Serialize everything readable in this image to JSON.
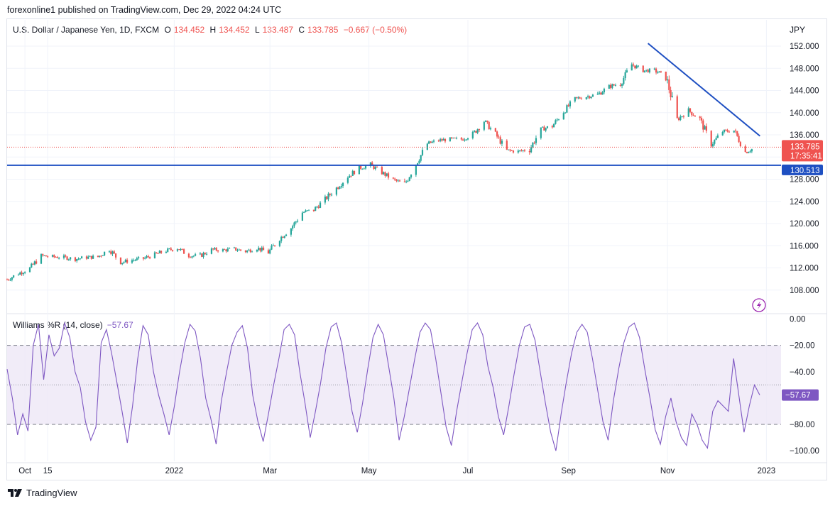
{
  "header": {
    "published": "forexonline1 published on TradingView.com, Dec 29, 2022 04:24 UTC"
  },
  "legend": {
    "symbol": "U.S. Dollar / Japanese Yen, 1D, FXCM",
    "o_label": "O",
    "o": "134.452",
    "h_label": "H",
    "h": "134.452",
    "l_label": "L",
    "l": "133.487",
    "c_label": "C",
    "c": "133.785",
    "change": "−0.667 (−0.50%)"
  },
  "price_unit": "JPY",
  "price_badge": {
    "value": "133.785",
    "countdown": "17:35:41"
  },
  "hline_badge": "130.513",
  "indicator": {
    "label": "Williams %R (14, close)",
    "value": "−57.67",
    "badge": "−57.67"
  },
  "footer": {
    "brand": "TradingView",
    "logo": "tradingview-logo-icon"
  },
  "colors": {
    "up": "#26a69a",
    "down": "#ef5350",
    "line": "#1e4fc2",
    "wr": "#7e57c2",
    "band": "#ede7f6"
  },
  "chart_data": [
    {
      "type": "candlestick",
      "title": "U.S. Dollar / Japanese Yen, 1D, FXCM",
      "ylabel": "JPY",
      "ylim": [
        104.0,
        157.0
      ],
      "y_ticks": [
        108,
        112,
        116,
        120,
        124,
        128,
        132,
        136,
        140,
        144,
        148,
        152
      ],
      "y_tick_labels": [
        "108.000",
        "112.000",
        "116.000",
        "120.000",
        "124.000",
        "128.000",
        "132.000",
        "136.000",
        "140.000",
        "144.000",
        "148.000",
        "152.000"
      ],
      "x_ticks": [
        "Oct",
        "15",
        "2022",
        "Mar",
        "May",
        "Jul",
        "Sep",
        "Nov",
        "2023"
      ],
      "x_tick_dates": [
        "2021-10-01",
        "2021-10-15",
        "2022-01-01",
        "2022-03-01",
        "2022-05-01",
        "2022-07-01",
        "2022-09-01",
        "2022-11-01",
        "2023-01-01"
      ],
      "last_close": 133.785,
      "horizontal_line": 130.513,
      "trendline": [
        [
          "2022-10-20",
          152.5
        ],
        [
          "2022-12-28",
          135.8
        ]
      ],
      "series_close": [
        [
          "2021-09-20",
          109.9
        ],
        [
          "2021-09-27",
          111.0
        ],
        [
          "2021-10-04",
          111.9
        ],
        [
          "2021-10-11",
          114.2
        ],
        [
          "2021-10-18",
          114.0
        ],
        [
          "2021-10-25",
          113.9
        ],
        [
          "2021-11-01",
          113.6
        ],
        [
          "2021-11-08",
          113.9
        ],
        [
          "2021-11-15",
          114.0
        ],
        [
          "2021-11-22",
          115.4
        ],
        [
          "2021-11-29",
          113.0
        ],
        [
          "2021-12-06",
          113.4
        ],
        [
          "2021-12-13",
          113.7
        ],
        [
          "2021-12-20",
          114.4
        ],
        [
          "2021-12-27",
          115.1
        ],
        [
          "2022-01-03",
          115.6
        ],
        [
          "2022-01-10",
          114.2
        ],
        [
          "2022-01-17",
          114.2
        ],
        [
          "2022-01-24",
          115.3
        ],
        [
          "2022-01-31",
          115.2
        ],
        [
          "2022-02-07",
          115.4
        ],
        [
          "2022-02-14",
          115.0
        ],
        [
          "2022-02-21",
          115.6
        ],
        [
          "2022-02-28",
          114.8
        ],
        [
          "2022-03-07",
          117.3
        ],
        [
          "2022-03-14",
          119.2
        ],
        [
          "2022-03-21",
          122.0
        ],
        [
          "2022-03-28",
          122.5
        ],
        [
          "2022-04-04",
          124.4
        ],
        [
          "2022-04-11",
          126.4
        ],
        [
          "2022-04-18",
          128.5
        ],
        [
          "2022-04-25",
          130.0
        ],
        [
          "2022-05-02",
          130.6
        ],
        [
          "2022-05-09",
          129.2
        ],
        [
          "2022-05-16",
          127.9
        ],
        [
          "2022-05-23",
          127.1
        ],
        [
          "2022-05-30",
          130.8
        ],
        [
          "2022-06-06",
          134.4
        ],
        [
          "2022-06-13",
          135.0
        ],
        [
          "2022-06-20",
          135.2
        ],
        [
          "2022-06-27",
          135.2
        ],
        [
          "2022-07-04",
          136.1
        ],
        [
          "2022-07-11",
          138.5
        ],
        [
          "2022-07-18",
          136.1
        ],
        [
          "2022-07-25",
          133.2
        ],
        [
          "2022-08-01",
          133.0
        ],
        [
          "2022-08-08",
          133.4
        ],
        [
          "2022-08-15",
          137.0
        ],
        [
          "2022-08-22",
          137.6
        ],
        [
          "2022-08-29",
          140.2
        ],
        [
          "2022-09-05",
          142.5
        ],
        [
          "2022-09-12",
          142.9
        ],
        [
          "2022-09-19",
          143.3
        ],
        [
          "2022-09-26",
          144.7
        ],
        [
          "2022-10-03",
          145.3
        ],
        [
          "2022-10-10",
          148.7
        ],
        [
          "2022-10-17",
          147.6
        ],
        [
          "2022-10-24",
          147.6
        ],
        [
          "2022-10-31",
          146.6
        ],
        [
          "2022-11-07",
          138.8
        ],
        [
          "2022-11-14",
          140.4
        ],
        [
          "2022-11-21",
          138.8
        ],
        [
          "2022-11-28",
          134.3
        ],
        [
          "2022-12-05",
          136.6
        ],
        [
          "2022-12-12",
          136.8
        ],
        [
          "2022-12-19",
          132.9
        ],
        [
          "2022-12-26",
          133.8
        ]
      ]
    },
    {
      "type": "line",
      "title": "Williams %R (14, close)",
      "ylim": [
        -108,
        3
      ],
      "y_ticks": [
        0,
        -20,
        -40,
        -60,
        -80,
        -100
      ],
      "y_tick_labels": [
        "0.00",
        "−20.00",
        "−40.00",
        "",
        "−80.00",
        "−100.00"
      ],
      "bands": [
        -20,
        -50,
        -80
      ],
      "last_value": -57.67,
      "series": [
        {
          "name": "Williams %R (14, close)",
          "values": [
            -38,
            -60,
            -88,
            -72,
            -85,
            -20,
            -4,
            -46,
            -12,
            -28,
            -22,
            -3,
            -14,
            -40,
            -52,
            -78,
            -92,
            -82,
            -18,
            -8,
            -26,
            -48,
            -70,
            -94,
            -66,
            -30,
            -5,
            -12,
            -40,
            -58,
            -72,
            -88,
            -66,
            -40,
            -18,
            -4,
            -9,
            -30,
            -60,
            -76,
            -95,
            -62,
            -40,
            -20,
            -10,
            -5,
            -22,
            -58,
            -78,
            -93,
            -72,
            -50,
            -30,
            -8,
            -4,
            -12,
            -40,
            -64,
            -90,
            -70,
            -48,
            -22,
            -6,
            -3,
            -18,
            -44,
            -70,
            -86,
            -64,
            -38,
            -14,
            -4,
            -12,
            -36,
            -60,
            -92,
            -74,
            -52,
            -30,
            -10,
            -3,
            -8,
            -30,
            -56,
            -82,
            -96,
            -70,
            -48,
            -26,
            -8,
            -3,
            -12,
            -36,
            -52,
            -74,
            -88,
            -66,
            -42,
            -20,
            -6,
            -4,
            -16,
            -40,
            -64,
            -86,
            -100,
            -72,
            -48,
            -26,
            -10,
            -4,
            -10,
            -30,
            -54,
            -78,
            -92,
            -62,
            -38,
            -18,
            -6,
            -3,
            -14,
            -38,
            -60,
            -84,
            -95,
            -74,
            -60,
            -78,
            -90,
            -96,
            -72,
            -80,
            -92,
            -98,
            -70,
            -62,
            -66,
            -70,
            -30,
            -58,
            -86,
            -66,
            -50,
            -57.67
          ]
        }
      ]
    }
  ]
}
